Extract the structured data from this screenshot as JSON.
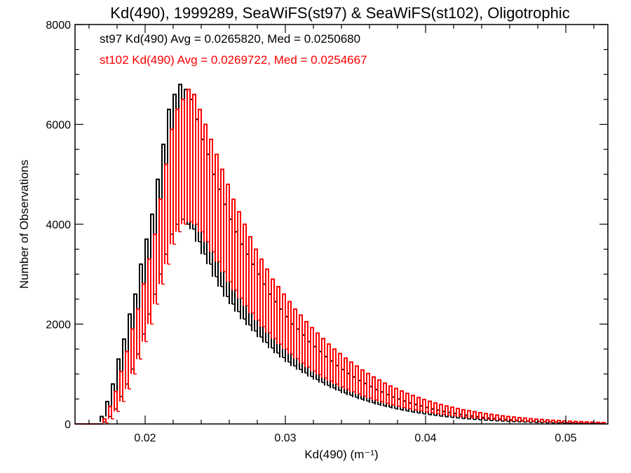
{
  "chart_data": {
    "type": "histogram",
    "title": "Kd(490), 1999289, SeaWiFS(st97) & SeaWiFS(st102), Oligotrophic",
    "xlabel": "Kd(490) (m⁻¹)",
    "ylabel": "Number of Observations",
    "xlim": [
      0.015,
      0.053
    ],
    "ylim": [
      0,
      8000
    ],
    "x_ticks": [
      "0.02",
      "0.03",
      "0.04",
      "0.05"
    ],
    "x_tick_values": [
      0.02,
      0.03,
      0.04,
      0.05
    ],
    "y_ticks": [
      "0",
      "2000",
      "4000",
      "6000",
      "8000"
    ],
    "y_tick_values": [
      0,
      2000,
      4000,
      6000,
      8000
    ],
    "grid": false,
    "legend_placement": "top-left",
    "bin_width": 0.0002,
    "series": [
      {
        "name": "st97 Kd(490) Avg = 0.0265820, Med = 0.0250680",
        "color": "#000000",
        "x": [
          0.0168,
          0.0172,
          0.0176,
          0.018,
          0.0184,
          0.0188,
          0.0192,
          0.0196,
          0.02,
          0.0204,
          0.0208,
          0.0212,
          0.0216,
          0.022,
          0.0224,
          0.0228,
          0.0232,
          0.0236,
          0.024,
          0.0244,
          0.0248,
          0.0252,
          0.0256,
          0.026,
          0.0264,
          0.0268,
          0.0272,
          0.0276,
          0.028,
          0.0284,
          0.0288,
          0.0292,
          0.0296,
          0.03,
          0.0304,
          0.0308,
          0.0312,
          0.0316,
          0.032,
          0.0324,
          0.0328,
          0.0332,
          0.0336,
          0.034,
          0.0344,
          0.0348,
          0.0352,
          0.0356,
          0.036,
          0.0364,
          0.0368,
          0.0372,
          0.0376,
          0.038,
          0.0384,
          0.0388,
          0.0392,
          0.0396,
          0.04,
          0.0404,
          0.0408,
          0.0412,
          0.0416,
          0.042,
          0.0424,
          0.0428,
          0.0432,
          0.0436,
          0.044,
          0.0444,
          0.0448,
          0.0452,
          0.0456,
          0.046,
          0.0464,
          0.0468,
          0.0472,
          0.0476,
          0.048,
          0.0484,
          0.0488,
          0.0492,
          0.0496,
          0.05,
          0.0504,
          0.0508,
          0.0512,
          0.0516,
          0.052,
          0.0524
        ],
        "y_high": [
          150,
          450,
          800,
          1300,
          1700,
          2200,
          2600,
          3200,
          3700,
          4200,
          4900,
          5600,
          6300,
          6600,
          6800,
          6700,
          6500,
          6100,
          5700,
          5400,
          5000,
          4700,
          4400,
          4100,
          3850,
          3600,
          3400,
          3200,
          3000,
          2800,
          2600,
          2450,
          2300,
          2150,
          2000,
          1900,
          1780,
          1650,
          1550,
          1450,
          1350,
          1260,
          1170,
          1090,
          1010,
          940,
          870,
          810,
          750,
          690,
          640,
          590,
          540,
          500,
          460,
          420,
          390,
          360,
          330,
          300,
          275,
          250,
          230,
          210,
          190,
          175,
          160,
          145,
          130,
          118,
          107,
          97,
          88,
          80,
          72,
          65,
          58,
          52,
          47,
          42,
          38,
          34,
          30,
          27,
          24,
          21,
          18,
          16,
          14,
          12
        ],
        "y_low": [
          40,
          150,
          300,
          550,
          800,
          1100,
          1400,
          1800,
          2200,
          2600,
          3000,
          3400,
          3800,
          4000,
          4100,
          4000,
          3900,
          3650,
          3400,
          3200,
          2950,
          2750,
          2550,
          2400,
          2250,
          2100,
          1980,
          1860,
          1740,
          1630,
          1520,
          1420,
          1330,
          1240,
          1160,
          1090,
          1020,
          950,
          890,
          830,
          770,
          720,
          670,
          620,
          575,
          535,
          495,
          460,
          425,
          390,
          362,
          335,
          308,
          284,
          261,
          240,
          221,
          203,
          187,
          172,
          157,
          143,
          131,
          119,
          108,
          99,
          90,
          82,
          74,
          67,
          61,
          55,
          50,
          45,
          41,
          37,
          33,
          30,
          27,
          24,
          21,
          19,
          17,
          15,
          13,
          12,
          10,
          9,
          8,
          7
        ]
      },
      {
        "name": "st102 Kd(490) Avg = 0.0269722, Med = 0.0254667",
        "color": "#ff0000",
        "x": [
          0.017,
          0.0174,
          0.0178,
          0.0182,
          0.0186,
          0.019,
          0.0194,
          0.0198,
          0.0202,
          0.0206,
          0.021,
          0.0214,
          0.0218,
          0.0222,
          0.0226,
          0.023,
          0.0234,
          0.0238,
          0.0242,
          0.0246,
          0.025,
          0.0254,
          0.0258,
          0.0262,
          0.0266,
          0.027,
          0.0274,
          0.0278,
          0.0282,
          0.0286,
          0.029,
          0.0294,
          0.0298,
          0.0302,
          0.0306,
          0.031,
          0.0314,
          0.0318,
          0.0322,
          0.0326,
          0.033,
          0.0334,
          0.0338,
          0.0342,
          0.0346,
          0.035,
          0.0354,
          0.0358,
          0.0362,
          0.0366,
          0.037,
          0.0374,
          0.0378,
          0.0382,
          0.0386,
          0.039,
          0.0394,
          0.0398,
          0.0402,
          0.0406,
          0.041,
          0.0414,
          0.0418,
          0.0422,
          0.0426,
          0.043,
          0.0434,
          0.0438,
          0.0442,
          0.0446,
          0.045,
          0.0454,
          0.0458,
          0.0462,
          0.0466,
          0.047,
          0.0474,
          0.0478,
          0.0482,
          0.0486,
          0.049,
          0.0494,
          0.0498,
          0.0502,
          0.0506,
          0.051,
          0.0514,
          0.0518,
          0.0522,
          0.0526
        ],
        "y_high": [
          100,
          350,
          650,
          1050,
          1450,
          1900,
          2300,
          2800,
          3300,
          3800,
          4500,
          5200,
          5900,
          6300,
          6500,
          6700,
          6600,
          6300,
          6000,
          5700,
          5400,
          5100,
          4800,
          4500,
          4250,
          4000,
          3750,
          3500,
          3300,
          3100,
          2900,
          2750,
          2600,
          2450,
          2300,
          2180,
          2050,
          1930,
          1820,
          1710,
          1600,
          1500,
          1410,
          1320,
          1240,
          1160,
          1080,
          1010,
          940,
          880,
          820,
          760,
          710,
          660,
          610,
          570,
          530,
          490,
          455,
          420,
          390,
          360,
          335,
          310,
          285,
          265,
          245,
          225,
          208,
          192,
          177,
          163,
          150,
          138,
          127,
          116,
          106,
          97,
          89,
          81,
          74,
          67,
          61,
          55,
          50,
          45,
          40,
          36,
          32,
          28
        ],
        "y_low": [
          20,
          100,
          250,
          450,
          700,
          1000,
          1300,
          1650,
          2000,
          2400,
          2800,
          3200,
          3600,
          3850,
          4000,
          4050,
          4000,
          3850,
          3650,
          3450,
          3250,
          3050,
          2850,
          2680,
          2520,
          2370,
          2220,
          2080,
          1950,
          1830,
          1710,
          1600,
          1500,
          1400,
          1310,
          1220,
          1140,
          1060,
          990,
          920,
          860,
          800,
          745,
          695,
          645,
          600,
          558,
          518,
          481,
          446,
          414,
          384,
          356,
          330,
          306,
          283,
          262,
          243,
          225,
          208,
          192,
          177,
          163,
          150,
          138,
          127,
          116,
          107,
          98,
          90,
          82,
          75,
          68,
          62,
          57,
          52,
          47,
          43,
          39,
          35,
          32,
          29,
          26,
          23,
          21,
          19,
          17,
          15,
          13,
          12
        ]
      }
    ]
  }
}
